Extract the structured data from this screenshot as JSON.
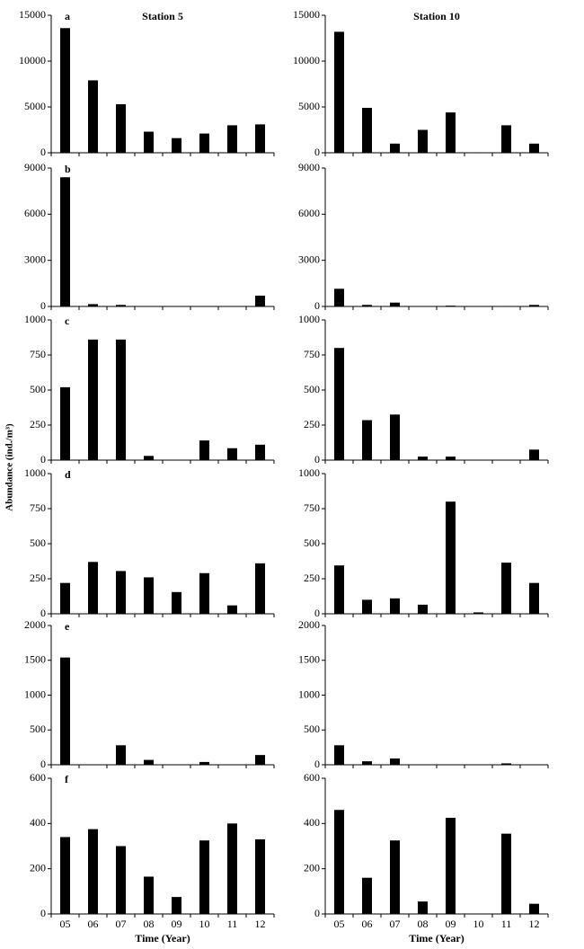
{
  "chart_data": [
    {
      "type": "bar",
      "title": "Station 5",
      "panel_label": "a",
      "values": [
        13600,
        7900,
        5300,
        2300,
        1600,
        2100,
        3000,
        3100
      ],
      "color": "#000000",
      "ylim": [
        0,
        15000
      ],
      "yticks": [
        0,
        5000,
        10000,
        15000
      ]
    },
    {
      "type": "bar",
      "title": "Station 10",
      "values": [
        13200,
        4900,
        1000,
        2500,
        4400,
        50,
        3000,
        1000
      ],
      "color": "#000000",
      "ylim": [
        0,
        15000
      ],
      "yticks": [
        0,
        5000,
        10000,
        15000
      ]
    },
    {
      "type": "bar",
      "panel_label": "b",
      "values": [
        8400,
        150,
        100,
        0,
        0,
        0,
        0,
        700
      ],
      "color": "#000000",
      "ylim": [
        0,
        9000
      ],
      "yticks": [
        0,
        3000,
        6000,
        9000
      ]
    },
    {
      "type": "bar",
      "values": [
        1150,
        100,
        250,
        0,
        50,
        0,
        30,
        100
      ],
      "color": "#000000",
      "ylim": [
        0,
        9000
      ],
      "yticks": [
        0,
        3000,
        6000,
        9000
      ]
    },
    {
      "type": "bar",
      "panel_label": "c",
      "y_label": "Abundance (ind./m³)",
      "values": [
        520,
        860,
        860,
        30,
        0,
        140,
        85,
        110
      ],
      "color": "#000000",
      "ylim": [
        0,
        1000
      ],
      "yticks": [
        0,
        250,
        500,
        750,
        1000
      ]
    },
    {
      "type": "bar",
      "values": [
        800,
        285,
        325,
        25,
        25,
        0,
        0,
        75
      ],
      "color": "#000000",
      "ylim": [
        0,
        1000
      ],
      "yticks": [
        0,
        250,
        500,
        750,
        1000
      ]
    },
    {
      "type": "bar",
      "panel_label": "d",
      "values": [
        220,
        370,
        305,
        260,
        155,
        290,
        60,
        360
      ],
      "color": "#000000",
      "ylim": [
        0,
        1000
      ],
      "yticks": [
        0,
        250,
        500,
        750,
        1000
      ]
    },
    {
      "type": "bar",
      "values": [
        345,
        100,
        110,
        65,
        800,
        10,
        365,
        220
      ],
      "color": "#000000",
      "ylim": [
        0,
        1000
      ],
      "yticks": [
        0,
        250,
        500,
        750,
        1000
      ]
    },
    {
      "type": "bar",
      "panel_label": "e",
      "values": [
        1540,
        0,
        280,
        70,
        0,
        40,
        0,
        140
      ],
      "color": "#000000",
      "ylim": [
        0,
        2000
      ],
      "yticks": [
        0,
        500,
        1000,
        1500,
        2000
      ]
    },
    {
      "type": "bar",
      "values": [
        280,
        50,
        90,
        0,
        0,
        0,
        20,
        0
      ],
      "color": "#000000",
      "ylim": [
        0,
        2000
      ],
      "yticks": [
        0,
        500,
        1000,
        1500,
        2000
      ]
    },
    {
      "type": "bar",
      "panel_label": "f",
      "x_label": "Time (Year)",
      "categories": [
        "05",
        "06",
        "07",
        "08",
        "09",
        "10",
        "11",
        "12"
      ],
      "values": [
        340,
        375,
        300,
        165,
        75,
        325,
        400,
        330
      ],
      "color": "#000000",
      "ylim": [
        0,
        600
      ],
      "yticks": [
        0,
        200,
        400,
        600
      ]
    },
    {
      "type": "bar",
      "x_label": "Time (Year)",
      "categories": [
        "05",
        "06",
        "07",
        "08",
        "09",
        "10",
        "11",
        "12"
      ],
      "values": [
        460,
        160,
        325,
        55,
        425,
        0,
        355,
        45
      ],
      "color": "#000000",
      "ylim": [
        0,
        600
      ],
      "yticks": [
        0,
        200,
        400,
        600
      ]
    }
  ]
}
